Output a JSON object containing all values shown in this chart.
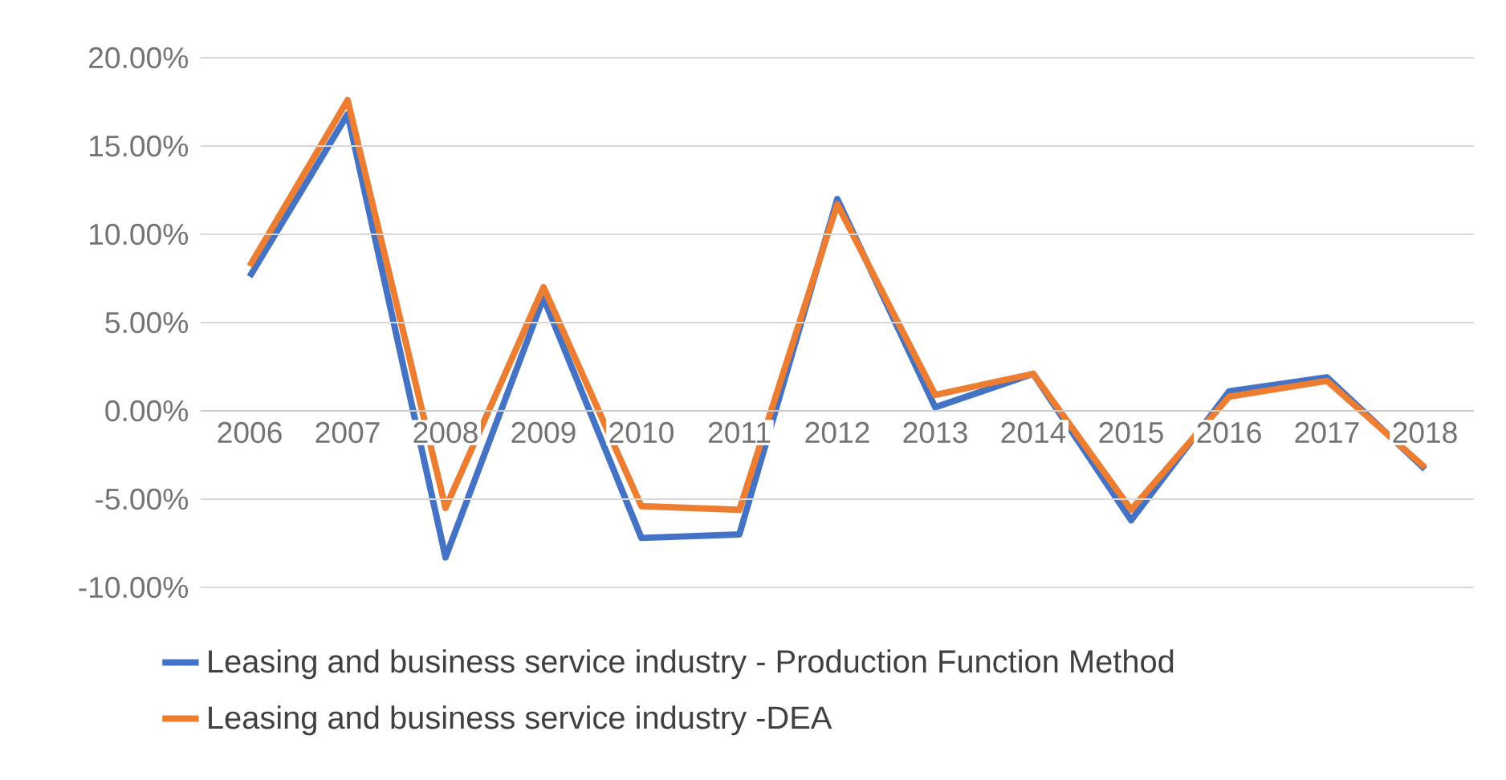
{
  "chart_data": {
    "type": "line",
    "categories": [
      "2006",
      "2007",
      "2008",
      "2009",
      "2010",
      "2011",
      "2012",
      "2013",
      "2014",
      "2015",
      "2016",
      "2017",
      "2018"
    ],
    "series": [
      {
        "name": "Leasing and business service industry - Production Function Method",
        "color": "#4472c4",
        "values": [
          7.6,
          16.8,
          -8.3,
          6.4,
          -7.2,
          -7.0,
          12.0,
          0.2,
          2.1,
          -6.2,
          1.1,
          1.9,
          -3.3
        ]
      },
      {
        "name": "Leasing and business service industry -DEA",
        "color": "#ed7d31",
        "values": [
          8.2,
          17.6,
          -5.5,
          7.0,
          -5.4,
          -5.6,
          11.7,
          0.9,
          2.1,
          -5.6,
          0.8,
          1.7,
          -3.2
        ]
      }
    ],
    "ylim": [
      -10,
      20
    ],
    "yticks": [
      {
        "value": -10,
        "label": "-10.00%"
      },
      {
        "value": -5,
        "label": "-5.00%"
      },
      {
        "value": 0,
        "label": "0.00%"
      },
      {
        "value": 5,
        "label": "5.00%"
      },
      {
        "value": 10,
        "label": "10.00%"
      },
      {
        "value": 15,
        "label": "15.00%"
      },
      {
        "value": 20,
        "label": "20.00%"
      }
    ],
    "grid": "y",
    "legend": "bottom"
  }
}
